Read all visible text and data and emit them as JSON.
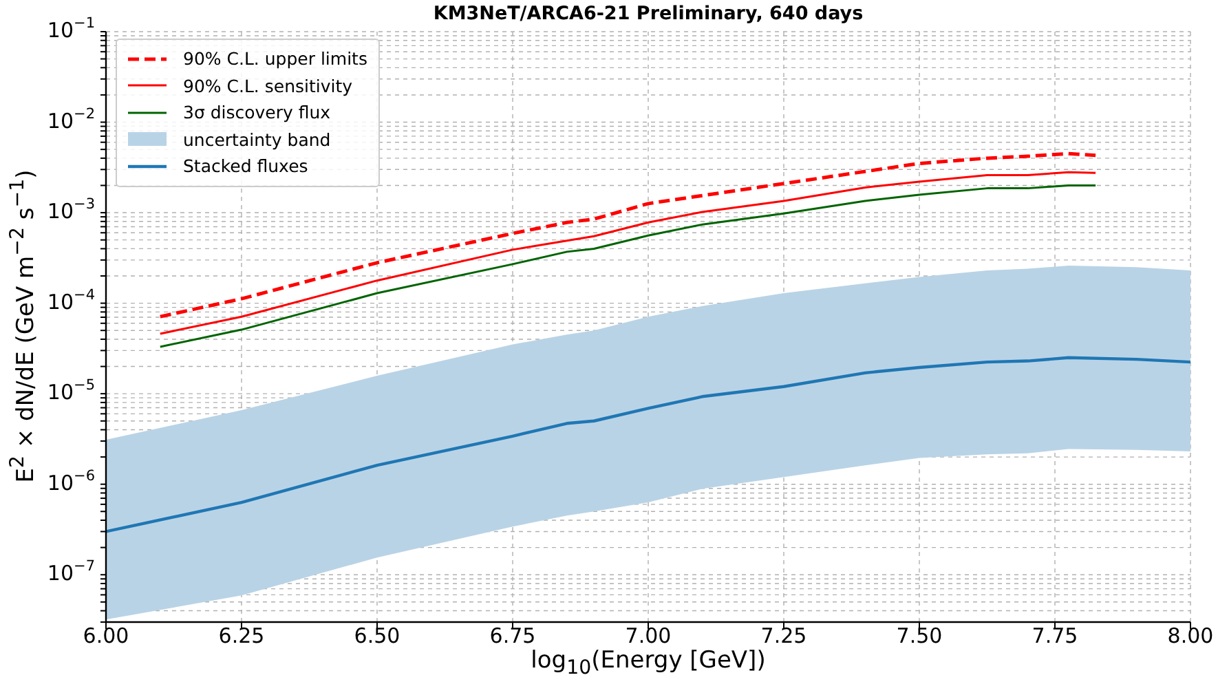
{
  "chart_data": {
    "type": "line",
    "title": "KM3NeT/ARCA6-21 Preliminary, 640 days",
    "xlabel": "log$_{10}$(Energy [GeV])",
    "ylabel": "E$^{2}$ × dN/dE (GeV m$^{−2}$ s$^{−1}$)",
    "annotations": [
      "uncertainty band"
    ],
    "log": "y",
    "grid": true,
    "legend": "top left",
    "marker": "none",
    "xlim": [
      6,
      8
    ],
    "xticks": [
      {
        "value": 6,
        "label": "6.00"
      },
      {
        "value": 6.25,
        "label": "6.25"
      },
      {
        "value": 6.5,
        "label": "6.50"
      },
      {
        "value": 6.75,
        "label": "6.75"
      },
      {
        "value": 7,
        "label": "7.00"
      },
      {
        "value": 7.25,
        "label": "7.25"
      },
      {
        "value": 7.5,
        "label": "7.50"
      },
      {
        "value": 7.75,
        "label": "7.75"
      },
      {
        "value": 8,
        "label": "8.00"
      }
    ],
    "ylim": [
      3e-08,
      0.1
    ],
    "yticks": [
      {
        "value": 3e-08,
        "label": null
      },
      {
        "value": 4e-08,
        "label": null
      },
      {
        "value": 5e-08,
        "label": null
      },
      {
        "value": 6e-08,
        "label": null
      },
      {
        "value": 7e-08,
        "label": null
      },
      {
        "value": 8e-08,
        "label": null
      },
      {
        "value": 9e-08,
        "label": null
      },
      {
        "value": 1e-07,
        "label": "10$^{−7}$"
      },
      {
        "value": 2e-07,
        "label": null
      },
      {
        "value": 3e-07,
        "label": null
      },
      {
        "value": 4e-07,
        "label": null
      },
      {
        "value": 5e-07,
        "label": null
      },
      {
        "value": 6e-07,
        "label": null
      },
      {
        "value": 7e-07,
        "label": null
      },
      {
        "value": 8e-07,
        "label": null
      },
      {
        "value": 9e-07,
        "label": null
      },
      {
        "value": 1e-06,
        "label": "10$^{−6}$"
      },
      {
        "value": 2e-06,
        "label": null
      },
      {
        "value": 3e-06,
        "label": null
      },
      {
        "value": 4e-06,
        "label": null
      },
      {
        "value": 5e-06,
        "label": null
      },
      {
        "value": 6e-06,
        "label": null
      },
      {
        "value": 7e-06,
        "label": null
      },
      {
        "value": 8e-06,
        "label": null
      },
      {
        "value": 9e-06,
        "label": null
      },
      {
        "value": 1e-05,
        "label": "10$^{−5}$"
      },
      {
        "value": 2e-05,
        "label": null
      },
      {
        "value": 3e-05,
        "label": null
      },
      {
        "value": 4e-05,
        "label": null
      },
      {
        "value": 5e-05,
        "label": null
      },
      {
        "value": 6e-05,
        "label": null
      },
      {
        "value": 7e-05,
        "label": null
      },
      {
        "value": 8e-05,
        "label": null
      },
      {
        "value": 9e-05,
        "label": null
      },
      {
        "value": 0.0001,
        "label": "10$^{−4}$"
      },
      {
        "value": 0.0002,
        "label": null
      },
      {
        "value": 0.0003,
        "label": null
      },
      {
        "value": 0.0004,
        "label": null
      },
      {
        "value": 0.0005,
        "label": null
      },
      {
        "value": 0.0006,
        "label": null
      },
      {
        "value": 0.0007,
        "label": null
      },
      {
        "value": 0.0008,
        "label": null
      },
      {
        "value": 0.0009,
        "label": null
      },
      {
        "value": 0.001,
        "label": "10$^{−3}$"
      },
      {
        "value": 0.002,
        "label": null
      },
      {
        "value": 0.003,
        "label": null
      },
      {
        "value": 0.004,
        "label": null
      },
      {
        "value": 0.005,
        "label": null
      },
      {
        "value": 0.006,
        "label": null
      },
      {
        "value": 0.007,
        "label": null
      },
      {
        "value": 0.008,
        "label": null
      },
      {
        "value": 0.009,
        "label": null
      },
      {
        "value": 0.01,
        "label": "10$^{−2}$"
      },
      {
        "value": 0.02,
        "label": null
      },
      {
        "value": 0.03,
        "label": null
      },
      {
        "value": 0.04,
        "label": null
      },
      {
        "value": 0.05,
        "label": null
      },
      {
        "value": 0.06,
        "label": null
      },
      {
        "value": 0.07,
        "label": null
      },
      {
        "value": 0.08,
        "label": null
      },
      {
        "value": 0.09,
        "label": null
      },
      {
        "value": 0.1,
        "label": "10$^{−1}$"
      }
    ],
    "series": [
      {
        "name": "90% C.L. upper limits",
        "line_style": "dashed",
        "color": "#ff0000",
        "x": [
          6.1,
          6.25,
          6.5,
          6.75,
          6.85,
          6.9,
          7.0,
          7.25,
          7.5,
          7.625,
          7.7,
          7.775,
          7.825
        ],
        "values": [
          7.1e-05,
          0.000112,
          0.00028,
          0.00059,
          0.00078,
          0.00085,
          0.00126,
          0.0021,
          0.0035,
          0.004,
          0.0042,
          0.0045,
          0.0043
        ]
      },
      {
        "name": "90% C.L. sensitivity",
        "line_style": "solid",
        "color": "#ff0000",
        "x": [
          6.1,
          6.25,
          6.5,
          6.75,
          6.85,
          6.9,
          7.0,
          7.1,
          7.25,
          7.4,
          7.5,
          7.625,
          7.7,
          7.775,
          7.825
        ],
        "values": [
          4.6e-05,
          7.1e-05,
          0.000178,
          0.00039,
          0.00049,
          0.00055,
          0.00078,
          0.00102,
          0.00135,
          0.0019,
          0.0022,
          0.0026,
          0.0026,
          0.0028,
          0.00275
        ]
      },
      {
        "name": "3σ discovery flux",
        "line_style": "solid",
        "color": "#006400",
        "x": [
          6.1,
          6.25,
          6.5,
          6.75,
          6.85,
          6.9,
          7.0,
          7.1,
          7.25,
          7.4,
          7.5,
          7.625,
          7.7,
          7.775,
          7.825
        ],
        "values": [
          3.3e-05,
          5.1e-05,
          0.000129,
          0.00027,
          0.00037,
          0.0004,
          0.00056,
          0.00074,
          0.00098,
          0.00135,
          0.00158,
          0.00186,
          0.00186,
          0.002,
          0.002
        ]
      },
      {
        "name": "Stacked fluxes",
        "line_style": "solid",
        "color": "#1f77b4",
        "x": [
          6.0,
          6.25,
          6.5,
          6.75,
          6.85,
          6.9,
          7.0,
          7.1,
          7.25,
          7.4,
          7.5,
          7.625,
          7.7,
          7.775,
          7.9,
          8.0
        ],
        "values": [
          3e-07,
          6.3e-07,
          1.62e-06,
          3.4e-06,
          4.7e-06,
          5e-06,
          6.9e-06,
          9.3e-06,
          1.2e-05,
          1.7e-05,
          1.95e-05,
          2.24e-05,
          2.3e-05,
          2.5e-05,
          2.4e-05,
          2.24e-05
        ],
        "lower": [
          3.2e-08,
          5.9e-08,
          1.55e-07,
          3.4e-07,
          4.5e-07,
          5e-07,
          6.3e-07,
          8.9e-07,
          1.2e-06,
          1.62e-06,
          1.95e-06,
          2.14e-06,
          2.2e-06,
          2.45e-06,
          2.4e-06,
          2.3e-06
        ],
        "upper": [
          3.1e-06,
          6.6e-06,
          1.58e-05,
          3.5e-05,
          4.5e-05,
          5e-05,
          7.1e-05,
          9.3e-05,
          0.000129,
          0.000166,
          0.000195,
          0.00023,
          0.00024,
          0.00026,
          0.00025,
          0.00023
        ]
      }
    ]
  }
}
